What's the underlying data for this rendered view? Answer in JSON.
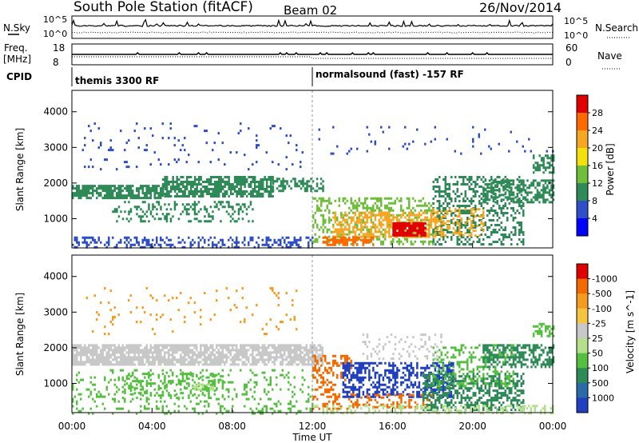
{
  "header": {
    "station": "South Pole Station (fitACF)",
    "beam": "Beam 02",
    "date": "26/Nov/2014"
  },
  "nsky_panel": {
    "left_label": "N.Sky",
    "right_label": "N.Search",
    "left_ticks": [
      "10^5",
      "10^0"
    ],
    "right_ticks": [
      "10^5",
      "10^0"
    ]
  },
  "freq_panel": {
    "left_label_line1": "Freq.",
    "left_label_line2": "[MHz]",
    "right_label": "Nave",
    "left_ticks": [
      "18",
      "8"
    ],
    "right_ticks": [
      "60",
      "0"
    ]
  },
  "cpid": {
    "label": "CPID",
    "mode1": "themis 3300 RF",
    "mode2": "normalsound (fast) -157 RF",
    "switch_hour": 12
  },
  "chart_data": [
    {
      "type": "heatmap",
      "name": "power-panel",
      "xlabel": "",
      "ylabel": "Slant Range [km]",
      "xlim": [
        0,
        24
      ],
      "ylim": [
        180,
        4600
      ],
      "yticks": [
        1000,
        2000,
        3000,
        4000
      ],
      "colorbar_label": "Power [dB]",
      "colorbar_ticks": [
        "4",
        "8",
        "12",
        "16",
        "20",
        "24",
        "28"
      ],
      "colorbar_colors": [
        "#0000ff",
        "#2f4fc8",
        "#2e8b57",
        "#6fbf3a",
        "#f2e20a",
        "#f5a623",
        "#ff6a00",
        "#e00000"
      ],
      "regions": [
        {
          "t0": 0.0,
          "t1": 4.5,
          "r0": 1600,
          "r1": 1950,
          "level": 2,
          "density": 0.75
        },
        {
          "t0": 4.5,
          "t1": 10.0,
          "r0": 1650,
          "r1": 2200,
          "level": 2,
          "density": 0.7
        },
        {
          "t0": 10.0,
          "t1": 12.5,
          "r0": 1800,
          "r1": 2150,
          "level": 2,
          "density": 0.5
        },
        {
          "t0": 2.0,
          "t1": 9.0,
          "r0": 900,
          "r1": 1500,
          "level": 2,
          "density": 0.25
        },
        {
          "t0": 0.0,
          "t1": 12.0,
          "r0": 180,
          "r1": 500,
          "level": 1,
          "density": 0.35
        },
        {
          "t0": 0.5,
          "t1": 11.5,
          "r0": 2400,
          "r1": 3700,
          "level": 1,
          "density": 0.05
        },
        {
          "t0": 12.0,
          "t1": 18.0,
          "r0": 300,
          "r1": 1600,
          "level": 3,
          "density": 0.35
        },
        {
          "t0": 13.0,
          "t1": 18.5,
          "r0": 500,
          "r1": 1200,
          "level": 5,
          "density": 0.55
        },
        {
          "t0": 16.0,
          "t1": 17.6,
          "r0": 550,
          "r1": 900,
          "level": 7,
          "density": 0.85
        },
        {
          "t0": 12.5,
          "t1": 15.0,
          "r0": 250,
          "r1": 500,
          "level": 6,
          "density": 0.6
        },
        {
          "t0": 18.0,
          "t1": 22.5,
          "r0": 250,
          "r1": 2200,
          "level": 2,
          "density": 0.4
        },
        {
          "t0": 20.5,
          "t1": 24.0,
          "r0": 1450,
          "r1": 2100,
          "level": 2,
          "density": 0.55
        },
        {
          "t0": 18.0,
          "t1": 20.5,
          "r0": 500,
          "r1": 1300,
          "level": 5,
          "density": 0.3
        },
        {
          "t0": 12.0,
          "t1": 24.0,
          "r0": 2800,
          "r1": 3600,
          "level": 1,
          "density": 0.04
        },
        {
          "t0": 23.0,
          "t1": 24.0,
          "r0": 2300,
          "r1": 2800,
          "level": 2,
          "density": 0.5
        }
      ]
    },
    {
      "type": "heatmap",
      "name": "velocity-panel",
      "xlabel": "Time UT",
      "ylabel": "Slant Range [km]",
      "xlim": [
        0,
        24
      ],
      "ylim": [
        180,
        4600
      ],
      "yticks": [
        1000,
        2000,
        3000,
        4000
      ],
      "xticks": [
        "00:00",
        "04:00",
        "08:00",
        "12:00",
        "16:00",
        "20:00",
        "00:00"
      ],
      "colorbar_label": "Velocity [m s^-1]",
      "colorbar_ticks": [
        "1000",
        "500",
        "100",
        "50",
        "25",
        "-25",
        "-100",
        "-500",
        "-1000"
      ],
      "colorbar_colors": [
        "#2040c0",
        "#2a6aa8",
        "#2e8b57",
        "#55c040",
        "#b4e08c",
        "#c8c8c8",
        "#f5c542",
        "#f59b20",
        "#f26a00",
        "#e00000"
      ],
      "regions": [
        {
          "t0": 0.0,
          "t1": 12.5,
          "r0": 1550,
          "r1": 2100,
          "level": 5,
          "density": 0.8
        },
        {
          "t0": 0.0,
          "t1": 12.0,
          "r0": 180,
          "r1": 1400,
          "level": 3,
          "density": 0.15
        },
        {
          "t0": 2.5,
          "t1": 7.5,
          "r0": 600,
          "r1": 1300,
          "level": 3,
          "density": 0.3
        },
        {
          "t0": 6.0,
          "t1": 7.0,
          "r0": 800,
          "r1": 1000,
          "level": 4,
          "density": 0.5
        },
        {
          "t0": 0.5,
          "t1": 11.5,
          "r0": 2400,
          "r1": 3700,
          "level": 7,
          "density": 0.04
        },
        {
          "t0": 12.0,
          "t1": 14.0,
          "r0": 300,
          "r1": 1800,
          "level": 8,
          "density": 0.35
        },
        {
          "t0": 13.5,
          "t1": 19.0,
          "r0": 600,
          "r1": 1600,
          "level": 0,
          "density": 0.55
        },
        {
          "t0": 14.0,
          "t1": 18.0,
          "r0": 300,
          "r1": 700,
          "level": 8,
          "density": 0.35
        },
        {
          "t0": 17.5,
          "t1": 22.5,
          "r0": 250,
          "r1": 1300,
          "level": 2,
          "density": 0.5
        },
        {
          "t0": 18.0,
          "t1": 22.0,
          "r0": 900,
          "r1": 2100,
          "level": 3,
          "density": 0.3
        },
        {
          "t0": 20.5,
          "t1": 24.0,
          "r0": 1450,
          "r1": 2100,
          "level": 2,
          "density": 0.5
        },
        {
          "t0": 12.0,
          "t1": 24.0,
          "r0": 180,
          "r1": 400,
          "level": 4,
          "density": 0.35
        },
        {
          "t0": 14.5,
          "t1": 18.5,
          "r0": 1700,
          "r1": 2400,
          "level": 5,
          "density": 0.15
        },
        {
          "t0": 23.0,
          "t1": 24.0,
          "r0": 2300,
          "r1": 2700,
          "level": 3,
          "density": 0.5
        }
      ]
    }
  ]
}
